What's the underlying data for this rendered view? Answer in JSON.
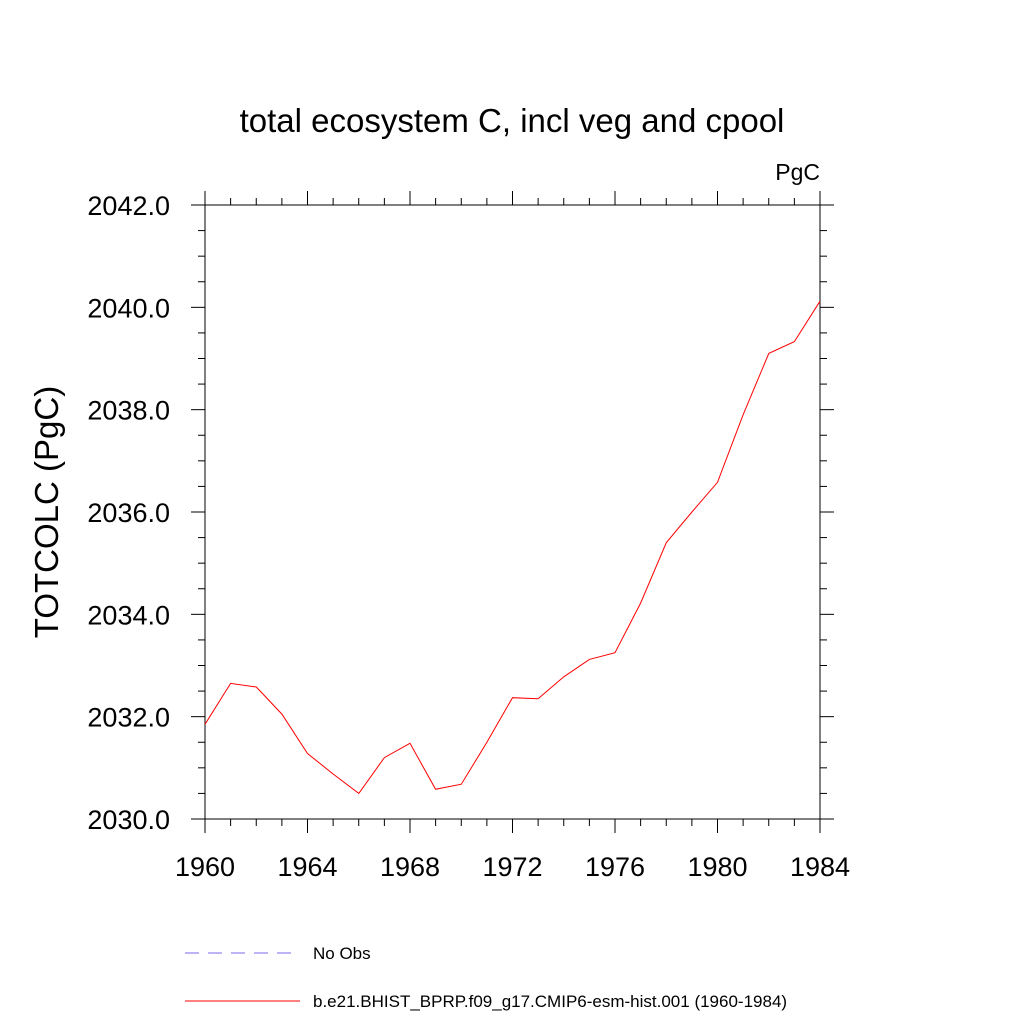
{
  "chart_data": {
    "type": "line",
    "title": "total ecosystem C, incl veg and cpool",
    "units": "PgC",
    "xlabel": "",
    "ylabel": "TOTCOLC  (PgC)",
    "xlim": [
      1960,
      1984
    ],
    "ylim": [
      2030.0,
      2042.0
    ],
    "xticks": [
      "1960",
      "1964",
      "1968",
      "1972",
      "1976",
      "1980",
      "1984"
    ],
    "yticks": [
      "2030.0",
      "2032.0",
      "2034.0",
      "2036.0",
      "2038.0",
      "2040.0",
      "2042.0"
    ],
    "series": [
      {
        "name": "b.e21.BHIST_BPRP.f09_g17.CMIP6-esm-hist.001 (1960-1984)",
        "color": "#ff0000",
        "dash": "solid",
        "x": [
          1960,
          1961,
          1962,
          1963,
          1964,
          1965,
          1966,
          1967,
          1968,
          1969,
          1970,
          1971,
          1972,
          1973,
          1974,
          1975,
          1976,
          1977,
          1978,
          1979,
          1980,
          1981,
          1982,
          1983,
          1984
        ],
        "values": [
          2031.85,
          2032.65,
          2032.58,
          2032.05,
          2031.28,
          2030.88,
          2030.5,
          2031.2,
          2031.48,
          2030.58,
          2030.68,
          2031.5,
          2032.37,
          2032.35,
          2032.78,
          2033.12,
          2033.25,
          2034.22,
          2035.4,
          2036.0,
          2036.58,
          2037.9,
          2039.1,
          2039.33,
          2040.12
        ]
      }
    ],
    "legend": [
      {
        "label": "No Obs",
        "color": "#7b68ee",
        "dash": "dashed"
      },
      {
        "label": "b.e21.BHIST_BPRP.f09_g17.CMIP6-esm-hist.001 (1960-1984)",
        "color": "#ff0000",
        "dash": "solid"
      }
    ],
    "legend_position": "bottom"
  }
}
